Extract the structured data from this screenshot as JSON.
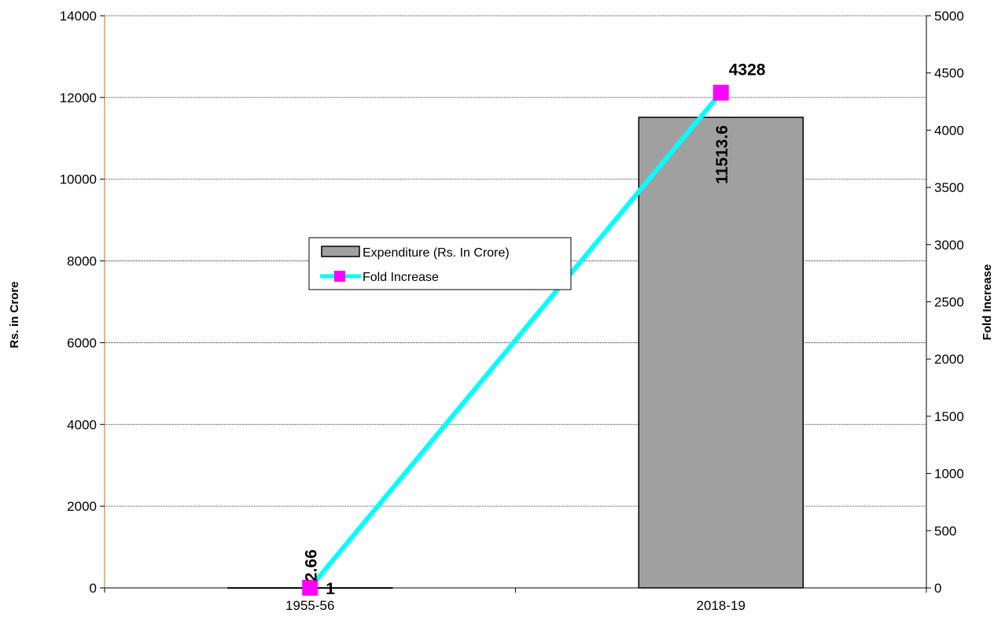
{
  "chart_data": {
    "type": "bar",
    "categories": [
      "1955-56",
      "2018-19"
    ],
    "series": [
      {
        "name": "Expenditure (Rs. In Crore)",
        "type": "bar",
        "axis": "left",
        "values": [
          2.66,
          11513.6
        ],
        "labels": [
          "2.66",
          "11513.6"
        ],
        "color": "#a0a0a0"
      },
      {
        "name": "Fold Increase",
        "type": "line",
        "axis": "right",
        "values": [
          1,
          4328
        ],
        "labels": [
          "1",
          "4328"
        ],
        "line_color": "#00ffff",
        "marker_color": "#ff00ff"
      }
    ],
    "ylabel": "Rs. in Crore",
    "y2label": "Fold Increase",
    "ylim": [
      0,
      14000
    ],
    "y2lim": [
      0,
      5000
    ],
    "yticks": [
      "0",
      "2000",
      "4000",
      "6000",
      "8000",
      "10000",
      "12000",
      "14000"
    ],
    "y2ticks": [
      "0",
      "500",
      "1000",
      "1500",
      "2000",
      "2500",
      "3000",
      "3500",
      "4000",
      "4500",
      "5000"
    ],
    "grid": "horizontal",
    "legend_position": "center-left"
  }
}
